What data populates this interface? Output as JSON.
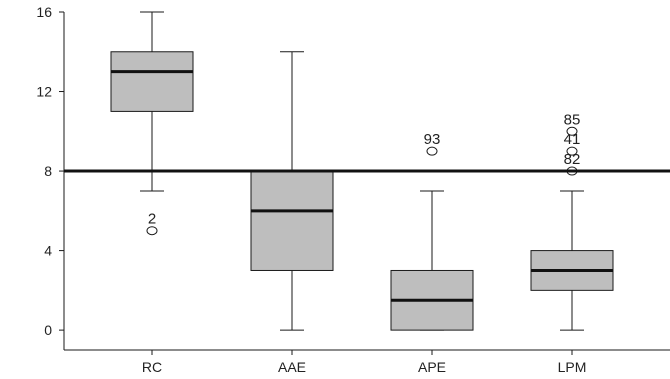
{
  "chart_data": {
    "type": "boxplot",
    "title": "",
    "xlabel": "",
    "ylabel": "",
    "ylim": [
      -1,
      16
    ],
    "yticks": [
      0,
      4,
      8,
      12,
      16
    ],
    "reference_line": 8,
    "grid": false,
    "categories": [
      "RC",
      "AAE",
      "APE",
      "LPM"
    ],
    "boxes": [
      {
        "category": "RC",
        "min": 7,
        "q1": 11,
        "median": 13,
        "q3": 14,
        "max": 16,
        "outliers": [
          {
            "value": 5,
            "label": "2"
          }
        ]
      },
      {
        "category": "AAE",
        "min": 0,
        "q1": 3,
        "median": 6,
        "q3": 8,
        "max": 14,
        "outliers": []
      },
      {
        "category": "APE",
        "min": 0,
        "q1": 0,
        "median": 1.5,
        "q3": 3,
        "max": 7,
        "outliers": [
          {
            "value": 9,
            "label": "93"
          }
        ]
      },
      {
        "category": "LPM",
        "min": 0,
        "q1": 2,
        "median": 3,
        "q3": 4,
        "max": 7,
        "outliers": [
          {
            "value": 8,
            "label": "82"
          },
          {
            "value": 9,
            "label": "41"
          },
          {
            "value": 10,
            "label": "85"
          }
        ]
      }
    ],
    "colors": {
      "box_fill": "#bebebe",
      "stroke": "#1a1a1a",
      "reference_line": "#111111"
    }
  }
}
